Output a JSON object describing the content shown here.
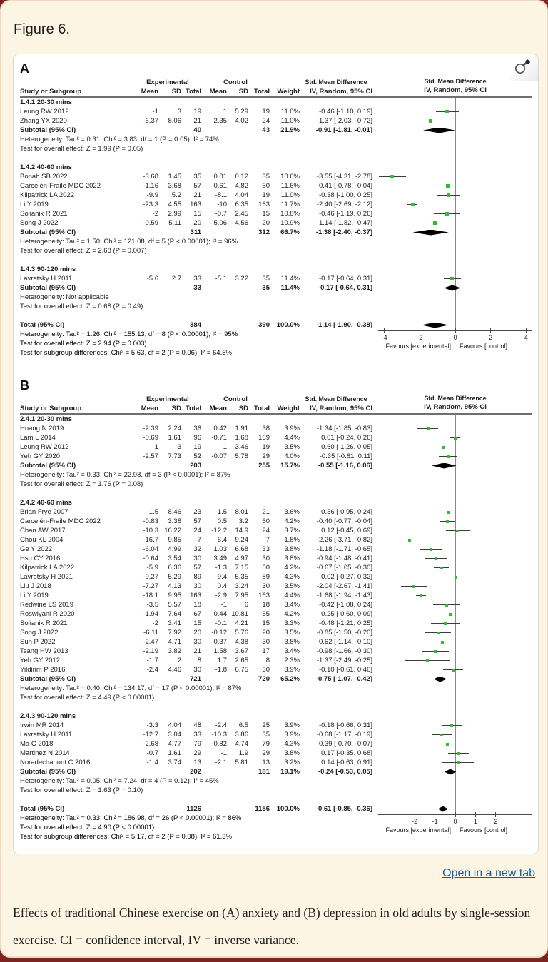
{
  "page": {
    "figure_label": "Figure 6.",
    "open_link": "Open in a new tab",
    "caption": "Effects of traditional Chinese exercise on (A) anxiety and (B) depression in old adults by single-session exercise. CI = confidence interval, IV = inverse variance."
  },
  "colors": {
    "marker_green": "#33bb33",
    "diamond_black": "#000000",
    "link_blue": "#0a63af",
    "card_background": "#fcf5e4",
    "card_border": "#f2d8c2"
  },
  "chart_data": [
    {
      "type": "forest",
      "panel_label": "A",
      "headers": {
        "group_experimental": "Experimental",
        "group_control": "Control",
        "effect": "Std. Mean Difference",
        "cols": [
          "Study or Subgroup",
          "Mean",
          "SD",
          "Total",
          "Mean",
          "SD",
          "Total",
          "Weight",
          "IV, Random, 95% CI"
        ],
        "plot_line1": "Std. Mean Difference",
        "plot_line2": "IV, Random, 95% CI"
      },
      "xlim": [
        -4.35,
        4.35
      ],
      "axis_ticks": [
        -4,
        -2,
        0,
        2,
        4
      ],
      "favours_left": "Favours [experimental]",
      "favours_right": "Favours [control]",
      "subgroups": [
        {
          "title": "1.4.1 20-30 mins",
          "studies": [
            [
              "Leung RW 2012",
              "-1",
              "3",
              "19",
              "1",
              "5.29",
              "19",
              "11.0%",
              "-0.46 [-1.10, 0.19]",
              -0.46,
              -1.1,
              0.19
            ],
            [
              "Zhang YX 2020",
              "-6.37",
              "8.06",
              "21",
              "2.35",
              "4.02",
              "24",
              "11.0%",
              "-1.37 [-2.03, -0.72]",
              -1.37,
              -2.03,
              -0.72
            ]
          ],
          "subtotal": {
            "label": "Subtotal (95% CI)",
            "e_total": "40",
            "c_total": "43",
            "weight": "21.9%",
            "ci_text": "-0.91 [-1.81, -0.01]",
            "est": -0.91,
            "lo": -1.81,
            "hi": -0.01
          },
          "heterogeneity": "Heterogeneity: Tau² = 0.31; Chi² = 3.83, df = 1 (P = 0.05); I² = 74%",
          "overall_test": "Test for overall effect: Z = 1.99 (P = 0.05)"
        },
        {
          "title": "1.4.2 40-60 mins",
          "studies": [
            [
              "Bonab SB 2022",
              "-3.68",
              "1.45",
              "35",
              "0.01",
              "0.12",
              "35",
              "10.6%",
              "-3.55 [-4.31, -2.78]",
              -3.55,
              -4.31,
              -2.78
            ],
            [
              "Carcelén-Fraile MDC 2022",
              "-1.16",
              "3.68",
              "57",
              "0.61",
              "4.82",
              "60",
              "11.6%",
              "-0.41 [-0.78, -0.04]",
              -0.41,
              -0.78,
              -0.04
            ],
            [
              "Kilpatrick LA 2022",
              "-9.9",
              "5.2",
              "21",
              "-8.1",
              "4.04",
              "19",
              "11.0%",
              "-0.38 [-1.00, 0.25]",
              -0.38,
              -1.0,
              0.25
            ],
            [
              "Li Y 2019",
              "-23.3",
              "4.55",
              "163",
              "-10",
              "6.35",
              "163",
              "11.7%",
              "-2.40 [-2.69, -2.12]",
              -2.4,
              -2.69,
              -2.12
            ],
            [
              "Solianik R 2021",
              "-2",
              "2.99",
              "15",
              "-0.7",
              "2.45",
              "15",
              "10.8%",
              "-0.46 [-1.19, 0.26]",
              -0.46,
              -1.19,
              0.26
            ],
            [
              "Song J 2022",
              "-0.59",
              "5.11",
              "20",
              "5.06",
              "4.56",
              "20",
              "10.9%",
              "-1.14 [-1.82, -0.47]",
              -1.14,
              -1.82,
              -0.47
            ]
          ],
          "subtotal": {
            "label": "Subtotal (95% CI)",
            "e_total": "311",
            "c_total": "312",
            "weight": "66.7%",
            "ci_text": "-1.38 [-2.40, -0.37]",
            "est": -1.38,
            "lo": -2.4,
            "hi": -0.37
          },
          "heterogeneity": "Heterogeneity: Tau² = 1.50; Chi² = 121.08, df = 5 (P < 0.00001); I² = 96%",
          "overall_test": "Test for overall effect: Z = 2.68 (P = 0.007)"
        },
        {
          "title": "1.4.3 90-120 mins",
          "studies": [
            [
              "Lavretsky H 2011",
              "-5.6",
              "2.7",
              "33",
              "-5.1",
              "3.22",
              "35",
              "11.4%",
              "-0.17 [-0.64, 0.31]",
              -0.17,
              -0.64,
              0.31
            ]
          ],
          "subtotal": {
            "label": "Subtotal (95% CI)",
            "e_total": "33",
            "c_total": "35",
            "weight": "11.4%",
            "ci_text": "-0.17 [-0.64, 0.31]",
            "est": -0.17,
            "lo": -0.64,
            "hi": 0.31
          },
          "heterogeneity": "Heterogeneity: Not applicable",
          "overall_test": "Test for overall effect: Z = 0.68 (P = 0.49)"
        }
      ],
      "total": {
        "label": "Total (95% CI)",
        "e_total": "384",
        "c_total": "390",
        "weight": "100.0%",
        "ci_text": "-1.14 [-1.90, -0.38]",
        "est": -1.14,
        "lo": -1.9,
        "hi": -0.38
      },
      "total_heterogeneity": "Heterogeneity: Tau² = 1.26; Chi² = 155.13, df = 8 (P < 0.00001); I² = 95%",
      "total_overall_test": "Test for overall effect: Z = 2.94 (P = 0.003)",
      "subgroup_differences": "Test for subgroup differences: Chi² = 5.63, df = 2 (P = 0.06), I² = 64.5%"
    },
    {
      "type": "forest",
      "panel_label": "B",
      "headers": {
        "group_experimental": "Experimental",
        "group_control": "Control",
        "effect": "Std. Mean Difference",
        "cols": [
          "Study or Subgroup",
          "Mean",
          "SD",
          "Total",
          "Mean",
          "SD",
          "Total",
          "Weight",
          "IV, Random, 95% CI"
        ],
        "plot_line1": "Std. Mean Difference",
        "plot_line2": "IV, Random, 95% CI"
      },
      "xlim": [
        -3.8,
        3.8
      ],
      "axis_ticks": [
        -2,
        -1,
        0,
        1,
        2
      ],
      "favours_left": "Favours [experimental]",
      "favours_right": "Favours [control]",
      "subgroups": [
        {
          "title": "2.4.1 20-30 mins",
          "studies": [
            [
              "Huang N 2019",
              "-2.39",
              "2.24",
              "36",
              "0.42",
              "1.91",
              "38",
              "3.9%",
              "-1.34 [-1.85, -0.83]",
              -1.34,
              -1.85,
              -0.83
            ],
            [
              "Lam L 2014",
              "-0.69",
              "1.61",
              "96",
              "-0.71",
              "1.68",
              "169",
              "4.4%",
              "0.01 [-0.24, 0.26]",
              0.01,
              -0.24,
              0.26
            ],
            [
              "Leung RW 2012",
              "-1",
              "3",
              "19",
              "1",
              "3.46",
              "19",
              "3.5%",
              "-0.60 [-1.26, 0.05]",
              -0.6,
              -1.26,
              0.05
            ],
            [
              "Yeh GY 2020",
              "-2.57",
              "7.73",
              "52",
              "-0.07",
              "5.78",
              "29",
              "4.0%",
              "-0.35 [-0.81, 0.11]",
              -0.35,
              -0.81,
              0.11
            ]
          ],
          "subtotal": {
            "label": "Subtotal (95% CI)",
            "e_total": "203",
            "c_total": "255",
            "weight": "15.7%",
            "ci_text": "-0.55 [-1.16, 0.06]",
            "est": -0.55,
            "lo": -1.16,
            "hi": 0.06
          },
          "heterogeneity": "Heterogeneity: Tau² = 0.33; Chi² = 22.98, df = 3 (P < 0.0001); I² = 87%",
          "overall_test": "Test for overall effect: Z = 1.76 (P = 0.08)"
        },
        {
          "title": "2.4.2 40-60 mins",
          "studies": [
            [
              "Brian Frye 2007",
              "-1.5",
              "8.46",
              "23",
              "1.5",
              "8.01",
              "21",
              "3.6%",
              "-0.36 [-0.95, 0.24]",
              -0.36,
              -0.95,
              0.24
            ],
            [
              "Carcelén-Fraile MDC 2022",
              "-0.83",
              "3.38",
              "57",
              "0.5",
              "3.2",
              "60",
              "4.2%",
              "-0.40 [-0.77, -0.04]",
              -0.4,
              -0.77,
              -0.04
            ],
            [
              "Chan AW 2017",
              "-10.3",
              "16.22",
              "24",
              "-12.2",
              "14.9",
              "24",
              "3.7%",
              "0.12 [-0.45, 0.69]",
              0.12,
              -0.45,
              0.69
            ],
            [
              "Chou KL 2004",
              "-16.7",
              "9.85",
              "7",
              "6.4",
              "9.24",
              "7",
              "1.8%",
              "-2.26 [-3.71, -0.82]",
              -2.26,
              -3.71,
              -0.82
            ],
            [
              "Ge Y 2022",
              "-6.04",
              "4.99",
              "32",
              "1.03",
              "6.68",
              "33",
              "3.8%",
              "-1.18 [-1.71, -0.65]",
              -1.18,
              -1.71,
              -0.65
            ],
            [
              "Hsu CY 2016",
              "-0.64",
              "3.54",
              "30",
              "3.49",
              "4.97",
              "30",
              "3.8%",
              "-0.94 [-1.48, -0.41]",
              -0.94,
              -1.48,
              -0.41
            ],
            [
              "Kilpatrick LA 2022",
              "-5.9",
              "6.36",
              "57",
              "-1.3",
              "7.15",
              "60",
              "4.2%",
              "-0.67 [-1.05, -0.30]",
              -0.67,
              -1.05,
              -0.3
            ],
            [
              "Lavretsky H 2021",
              "-9.27",
              "5.29",
              "89",
              "-9.4",
              "5.35",
              "89",
              "4.3%",
              "0.02 [-0.27, 0.32]",
              0.02,
              -0.27,
              0.32
            ],
            [
              "Liu J 2018",
              "-7.27",
              "4.13",
              "30",
              "0.4",
              "3.24",
              "30",
              "3.5%",
              "-2.04 [-2.67, -1.41]",
              -2.04,
              -2.67,
              -1.41
            ],
            [
              "Li Y 2019",
              "-18.1",
              "9.95",
              "163",
              "-2.9",
              "7.95",
              "163",
              "4.4%",
              "-1.68 [-1.94, -1.43]",
              -1.68,
              -1.94,
              -1.43
            ],
            [
              "Redwine LS 2019",
              "-3.5",
              "5.57",
              "18",
              "-1",
              "6",
              "18",
              "3.4%",
              "-0.42 [-1.08, 0.24]",
              -0.42,
              -1.08,
              0.24
            ],
            [
              "Roswiyani R 2020",
              "-1.94",
              "7.64",
              "67",
              "0.44",
              "10.81",
              "65",
              "4.2%",
              "-0.25 [-0.60, 0.09]",
              -0.25,
              -0.6,
              0.09
            ],
            [
              "Solianik R 2021",
              "-2",
              "3.41",
              "15",
              "-0.1",
              "4.21",
              "15",
              "3.3%",
              "-0.48 [-1.21, 0.25]",
              -0.48,
              -1.21,
              0.25
            ],
            [
              "Song J 2022",
              "-6.11",
              "7.92",
              "20",
              "-0.12",
              "5.76",
              "20",
              "3.5%",
              "-0.85 [-1.50, -0.20]",
              -0.85,
              -1.5,
              -0.2
            ],
            [
              "Sun P 2022",
              "-2.47",
              "4.71",
              "30",
              "0.37",
              "4.38",
              "30",
              "3.8%",
              "-0.62 [-1.14, -0.10]",
              -0.62,
              -1.14,
              -0.1
            ],
            [
              "Tsang HW 2013",
              "-2.19",
              "3.82",
              "21",
              "1.58",
              "3.67",
              "17",
              "3.4%",
              "-0.98 [-1.66, -0.30]",
              -0.98,
              -1.66,
              -0.3
            ],
            [
              "Yeh GY 2012",
              "-1.7",
              "2",
              "8",
              "1.7",
              "2.65",
              "8",
              "2.3%",
              "-1.37 [-2.49, -0.25]",
              -1.37,
              -2.49,
              -0.25
            ],
            [
              "Yildirim P 2016",
              "-2.4",
              "4.46",
              "30",
              "-1.8",
              "6.75",
              "30",
              "3.9%",
              "-0.10 [-0.61, 0.40]",
              -0.1,
              -0.61,
              0.4
            ]
          ],
          "subtotal": {
            "label": "Subtotal (95% CI)",
            "e_total": "721",
            "c_total": "720",
            "weight": "65.2%",
            "ci_text": "-0.75 [-1.07, -0.42]",
            "est": -0.75,
            "lo": -1.07,
            "hi": -0.42
          },
          "heterogeneity": "Heterogeneity: Tau² = 0.40; Chi² = 134.17, df = 17 (P < 0.00001); I² = 87%",
          "overall_test": "Test for overall effect: Z = 4.49 (P < 0.00001)"
        },
        {
          "title": "2.4.3 90-120 mins",
          "studies": [
            [
              "Irwin MR 2014",
              "-3.3",
              "4.04",
              "48",
              "-2.4",
              "6.5",
              "25",
              "3.9%",
              "-0.18 [-0.66, 0.31]",
              -0.18,
              -0.66,
              0.31
            ],
            [
              "Lavretsky H 2011",
              "-12.7",
              "3.04",
              "33",
              "-10.3",
              "3.86",
              "35",
              "3.9%",
              "-0.68 [-1.17, -0.19]",
              -0.68,
              -1.17,
              -0.19
            ],
            [
              "Ma C 2018",
              "-2.68",
              "4.77",
              "79",
              "-0.82",
              "4.74",
              "79",
              "4.3%",
              "-0.39 [-0.70, -0.07]",
              -0.39,
              -0.7,
              -0.07
            ],
            [
              "Martinez N 2014",
              "-0.7",
              "1.61",
              "29",
              "-1",
              "1.9",
              "29",
              "3.8%",
              "0.17 [-0.35, 0.68]",
              0.17,
              -0.35,
              0.68
            ],
            [
              "Noradechanunt C 2016",
              "-1.4",
              "3.74",
              "13",
              "-2.1",
              "5.81",
              "13",
              "3.2%",
              "0.14 [-0.63, 0.91]",
              0.14,
              -0.63,
              0.91
            ]
          ],
          "subtotal": {
            "label": "Subtotal (95% CI)",
            "e_total": "202",
            "c_total": "181",
            "weight": "19.1%",
            "ci_text": "-0.24 [-0.53, 0.05]",
            "est": -0.24,
            "lo": -0.53,
            "hi": 0.05
          },
          "heterogeneity": "Heterogeneity: Tau² = 0.05; Chi² = 7.24, df = 4 (P = 0.12); I² = 45%",
          "overall_test": "Test for overall effect: Z = 1.63 (P = 0.10)"
        }
      ],
      "total": {
        "label": "Total (95% CI)",
        "e_total": "1126",
        "c_total": "1156",
        "weight": "100.0%",
        "ci_text": "-0.61 [-0.85, -0.36]",
        "est": -0.61,
        "lo": -0.85,
        "hi": -0.36
      },
      "total_heterogeneity": "Heterogeneity: Tau² = 0.33; Chi² = 186.98, df = 26 (P < 0.00001); I² = 86%",
      "total_overall_test": "Test for overall effect: Z = 4.90 (P < 0.00001)",
      "subgroup_differences": "Test for subgroup differences: Chi² = 5.17, df = 2 (P = 0.08), I² = 61.3%"
    }
  ]
}
